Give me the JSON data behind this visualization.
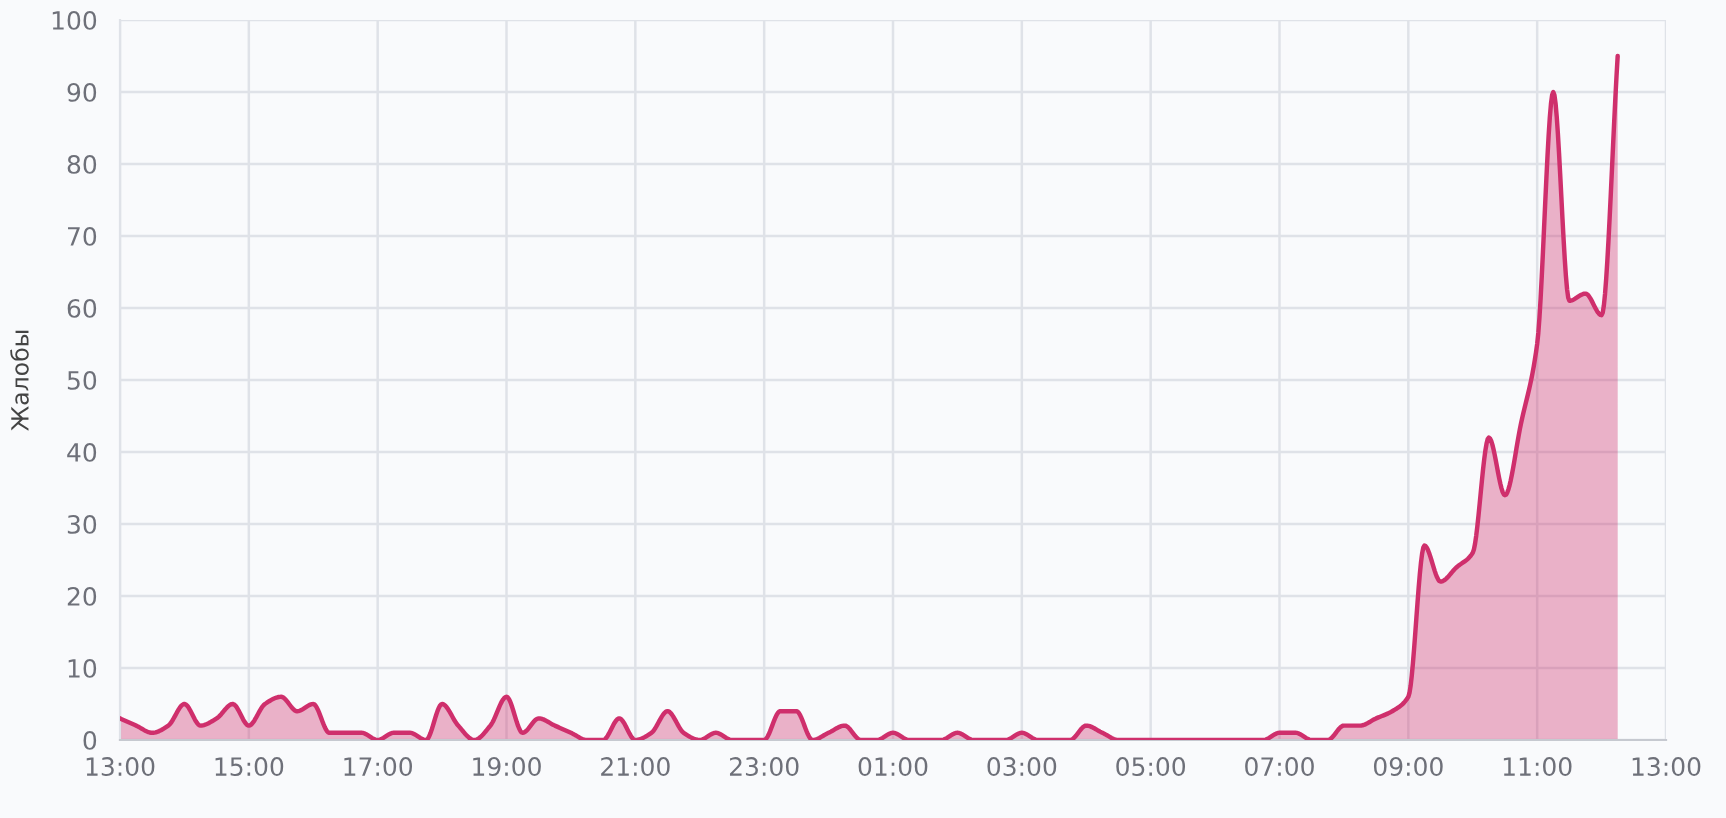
{
  "chart_data": {
    "type": "area",
    "ylabel": "Жалобы",
    "categories": [
      "13:00",
      null,
      null,
      null,
      null,
      null,
      null,
      null,
      "15:00",
      null,
      null,
      null,
      null,
      null,
      null,
      null,
      "17:00",
      null,
      null,
      null,
      null,
      null,
      null,
      null,
      "19:00",
      null,
      null,
      null,
      null,
      null,
      null,
      null,
      "21:00",
      null,
      null,
      null,
      null,
      null,
      null,
      null,
      "23:00",
      null,
      null,
      null,
      null,
      null,
      null,
      null,
      "01:00",
      null,
      null,
      null,
      null,
      null,
      null,
      null,
      "03:00",
      null,
      null,
      null,
      null,
      null,
      null,
      null,
      "05:00",
      null,
      null,
      null,
      null,
      null,
      null,
      null,
      "07:00",
      null,
      null,
      null,
      null,
      null,
      null,
      null,
      "09:00",
      null,
      null,
      null,
      null,
      null,
      null,
      null,
      "11:00",
      null,
      null,
      null,
      null,
      null,
      null,
      null,
      "13:00"
    ],
    "series": [
      {
        "color": "#cf2f6c",
        "values": [
          3,
          2,
          1,
          2,
          5,
          2,
          3,
          5,
          2,
          5,
          6,
          4,
          5,
          1,
          1,
          1,
          0,
          1,
          1,
          0,
          5,
          2,
          0,
          2,
          6,
          1,
          3,
          2,
          1,
          0,
          0,
          3,
          0,
          1,
          4,
          1,
          0,
          1,
          0,
          0,
          0,
          4,
          4,
          0,
          1,
          2,
          0,
          0,
          1,
          0,
          0,
          0,
          1,
          0,
          0,
          0,
          1,
          0,
          0,
          0,
          2,
          1,
          0,
          0,
          0,
          0,
          0,
          0,
          0,
          0,
          0,
          0,
          1,
          1,
          0,
          0,
          2,
          2,
          3,
          4,
          6,
          27,
          22,
          24,
          26,
          42,
          34,
          44,
          55,
          90,
          61,
          62,
          59,
          95,
          null,
          null,
          null
        ]
      }
    ],
    "ylim": [
      0,
      100
    ],
    "yticks": [
      0,
      10,
      20,
      30,
      40,
      50,
      60,
      70,
      80,
      90,
      100
    ],
    "grid": true,
    "line_style": "solid"
  }
}
